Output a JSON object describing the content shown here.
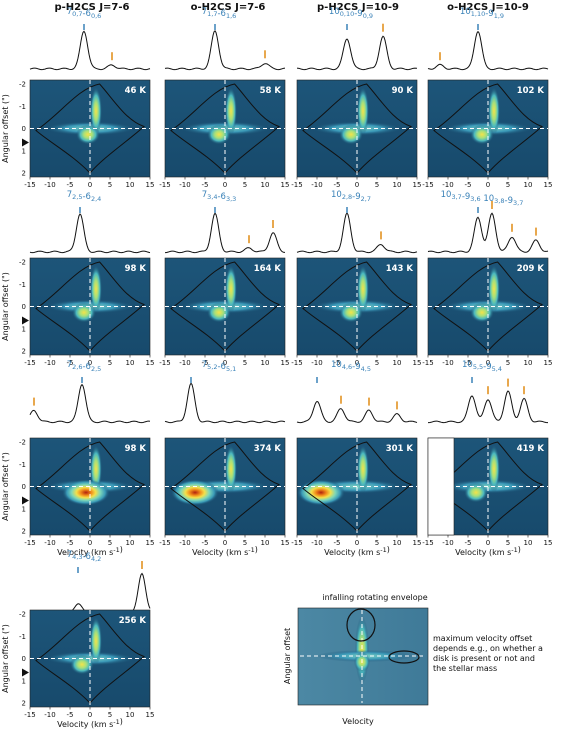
{
  "column_titles": [
    "p-H2CS J=7-6",
    "o-H2CS J=7-6",
    "p-H2CS J=10-9",
    "o-H2CS J=10-9"
  ],
  "panels": [
    {
      "transition": "7_{0,7}-6_{0,6}",
      "temperature": "46 K",
      "ylabel": "Angular offset (\")"
    },
    {
      "transition": "7_{1,7}-6_{1,6}",
      "temperature": "58 K"
    },
    {
      "transition": "10_{0,10}-9_{0,9}",
      "temperature": "90 K"
    },
    {
      "transition": "10_{1,10}-9_{1,9}",
      "temperature": "102 K"
    },
    {
      "transition": "7_{2,5}-6_{2,4}",
      "temperature": "98 K",
      "ylabel": "Angular offset (\")"
    },
    {
      "transition": "7_{3,4}-6_{3,3}",
      "temperature": "164 K"
    },
    {
      "transition": "10_{2,8}-9_{2,7}",
      "temperature": "143 K"
    },
    {
      "transition": "10_{3,7}-9_{3,6}  10_{3,8}-9_{3,7}",
      "temperature": "209 K"
    },
    {
      "transition": "7_{2,6}-6_{2,5}",
      "temperature": "98 K",
      "ylabel": "Angular offset (\")",
      "xlabel": "Velocity (km s^{-1})"
    },
    {
      "transition": "7_{5,2}-6_{5,1}",
      "temperature": "374 K",
      "xlabel": "Velocity (km s^{-1})"
    },
    {
      "transition": "10_{4,6}-9_{4,5}",
      "temperature": "301 K",
      "xlabel": "Velocity (km s^{-1})"
    },
    {
      "transition": "10_{5,5}-9_{5,4}",
      "temperature": "419 K",
      "xlabel": "Velocity (km s^{-1})"
    },
    {
      "transition": "7_{4,3}-6_{4,2}",
      "temperature": "256 K",
      "ylabel": "Angular offset (\")",
      "xlabel": "Velocity (km s^{-1})"
    }
  ],
  "xticks": [
    "-15",
    "-10",
    "-5",
    "0",
    "5",
    "10",
    "15"
  ],
  "yticks": [
    "-2",
    "-1",
    "0",
    "1",
    "2"
  ],
  "schematic": {
    "label_envelope": "infalling rotating envelope",
    "label_offset": "maximum velocity offset depends e.g., on whether a disk is present or not and the stellar mass",
    "ylabel": "Angular offset",
    "xlabel": "Velocity"
  },
  "colors": {
    "transition": "#3a82b8",
    "marker": "#e08a12",
    "heat_low": "#1a4f72",
    "heat_high": "#b0200e"
  },
  "chart_data": {
    "type": "heatmap",
    "description_axes": {
      "x": "Velocity (km s^-1)",
      "y": "Angular offset (\")"
    },
    "xlim": [
      -15,
      15
    ],
    "ylim": [
      2,
      -2
    ],
    "panels": [
      {
        "transition": "7_{0,7}-6_{0,6}",
        "E_up": "46 K",
        "spectrum_peaks": [
          [
            -1.5,
            1.0
          ],
          [
            5.5,
            0.1
          ]
        ]
      },
      {
        "transition": "7_{1,7}-6_{1,6}",
        "E_up": "58 K",
        "spectrum_peaks": [
          [
            -2.5,
            1.0
          ],
          [
            10,
            0.15
          ]
        ]
      },
      {
        "transition": "10_{0,10}-9_{0,9}",
        "E_up": "90 K",
        "spectrum_peaks": [
          [
            -2.5,
            0.8
          ],
          [
            6.5,
            0.85
          ]
        ]
      },
      {
        "transition": "10_{1,10}-9_{1,9}",
        "E_up": "102 K",
        "spectrum_peaks": [
          [
            -2.5,
            1.0
          ],
          [
            -12,
            0.1
          ]
        ]
      },
      {
        "transition": "7_{2,5}-6_{2,4}",
        "E_up": "98 K",
        "spectrum_peaks": [
          [
            -2.5,
            1.0
          ]
        ]
      },
      {
        "transition": "7_{3,4}-6_{3,3}",
        "E_up": "164 K",
        "spectrum_peaks": [
          [
            -2.5,
            1.0
          ],
          [
            6,
            0.1
          ],
          [
            12,
            0.5
          ]
        ]
      },
      {
        "transition": "10_{2,8}-9_{2,7}",
        "E_up": "143 K",
        "spectrum_peaks": [
          [
            -2.5,
            1.0
          ],
          [
            6,
            0.2
          ]
        ]
      },
      {
        "transition": "10_{3,7}-9_{3,6} / 10_{3,8}-9_{3,7}",
        "E_up": "209 K",
        "spectrum_peaks": [
          [
            -2.5,
            0.9
          ],
          [
            1,
            1.0
          ],
          [
            6,
            0.4
          ],
          [
            12,
            0.3
          ]
        ]
      },
      {
        "transition": "7_{2,6}-6_{2,5}",
        "E_up": "98 K",
        "spectrum_peaks": [
          [
            -2,
            1.0
          ],
          [
            -14,
            0.3
          ]
        ]
      },
      {
        "transition": "7_{5,2}-6_{5,1}",
        "E_up": "374 K",
        "spectrum_peaks": [
          [
            -8.5,
            1.0
          ]
        ]
      },
      {
        "transition": "10_{4,6}-9_{4,5}",
        "E_up": "301 K",
        "spectrum_peaks": [
          [
            -10,
            0.55
          ],
          [
            -4,
            0.35
          ],
          [
            3,
            0.3
          ],
          [
            10,
            0.2
          ]
        ]
      },
      {
        "transition": "10_{5,5}-9_{5,4}",
        "E_up": "419 K",
        "spectrum_peaks": [
          [
            -4,
            0.7
          ],
          [
            0,
            0.6
          ],
          [
            5,
            0.8
          ],
          [
            9,
            0.6
          ]
        ]
      },
      {
        "transition": "7_{4,3}-6_{4,2}",
        "E_up": "256 K",
        "spectrum_peaks": [
          [
            -3,
            0.2
          ],
          [
            13,
            1.0
          ]
        ]
      }
    ]
  }
}
